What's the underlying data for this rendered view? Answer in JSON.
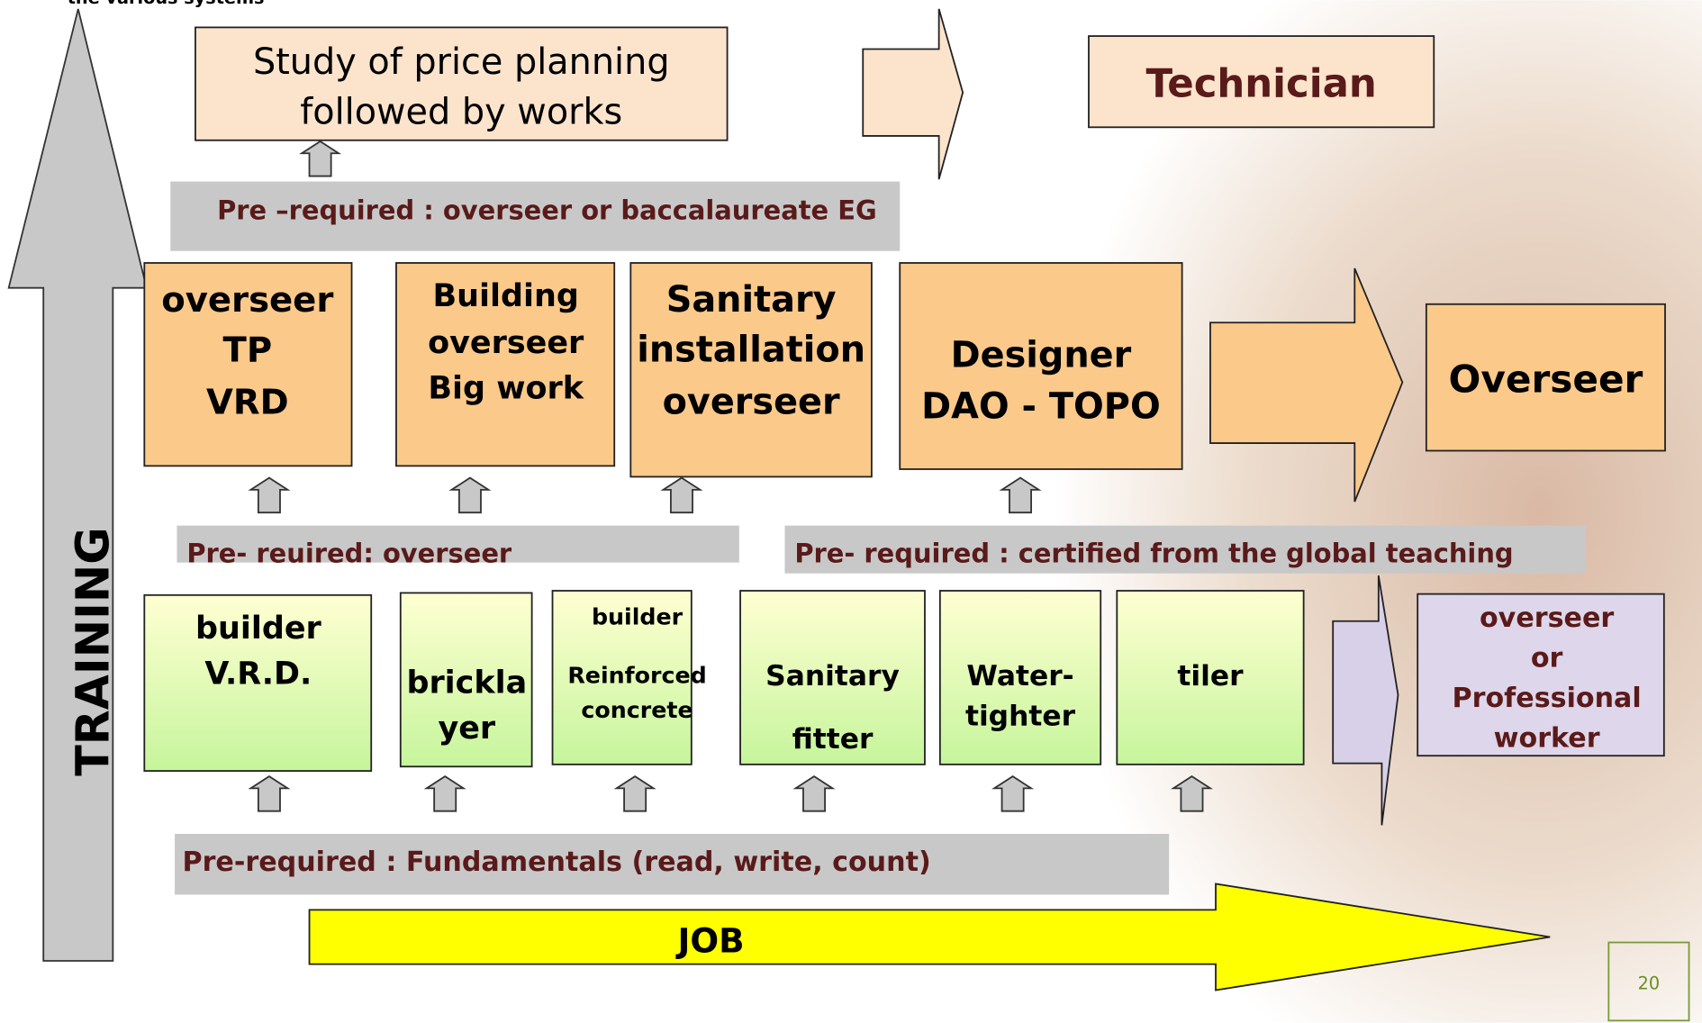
{
  "header_fragment": "the various systems",
  "top_box": {
    "lines": [
      "Study of price  planning",
      "followed by works"
    ]
  },
  "technician": "Technician",
  "prereq_1": "Pre –required  : overseer or baccalaureate  EG",
  "mid_boxes": [
    {
      "lines": [
        "overseer",
        "TP",
        "VRD"
      ]
    },
    {
      "lines": [
        "Building",
        "overseer",
        "Big work"
      ]
    },
    {
      "lines": [
        "Sanitary",
        "installation",
        "overseer"
      ]
    },
    {
      "lines": [
        "Designer",
        "DAO - TOPO"
      ]
    }
  ],
  "overseer": "Overseer",
  "prereq_2": "Pre- reuired: overseer",
  "prereq_3": "Pre- required : certified from the global teaching",
  "low_boxes": [
    {
      "lines": [
        "builder",
        "V.R.D."
      ]
    },
    {
      "lines": [
        "brickla",
        "yer"
      ]
    },
    {
      "lines": [
        "builder",
        "Reinforced",
        "concrete"
      ]
    },
    {
      "lines": [
        "Sanitary",
        "fitter"
      ]
    },
    {
      "lines": [
        "Water-",
        "tighter"
      ]
    },
    {
      "lines": [
        "tiler"
      ]
    }
  ],
  "worker": {
    "lines": [
      "overseer",
      "or",
      "Professional",
      "worker"
    ]
  },
  "prereq_4": "Pre-required : Fundamentals (read, write, count)",
  "training": "TRAINING",
  "job": "JOB",
  "page_number": "20"
}
